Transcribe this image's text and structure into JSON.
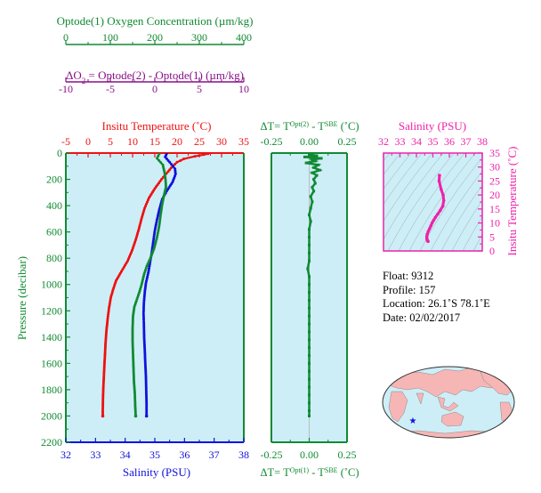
{
  "colors": {
    "temperature": "#ee1111",
    "salinity": "#1111dd",
    "oxygen": "#118a33",
    "delta_o2": "#881188",
    "salinity_inset": "#ee22aa",
    "plot_bg": "#cdeef7"
  },
  "top_axes": {
    "oxygen": {
      "label": "Optode(1) Oxygen Concentration  (µm/kg)",
      "ticks": [
        "0",
        "100",
        "200",
        "300",
        "400"
      ]
    },
    "delta_o2": {
      "label_prefix": "ΔO",
      "label_sub": "2",
      "label_suffix": " = Optode(2) - Optode(1)     (µm/kg)",
      "ticks": [
        "-10",
        "-5",
        "0",
        "5",
        "10"
      ]
    }
  },
  "main_panel": {
    "temp_label": "Insitu Temperature (˚C)",
    "temp_ticks": [
      "-5",
      "0",
      "5",
      "10",
      "15",
      "20",
      "25",
      "30",
      "35"
    ],
    "sal_label": "Salinity (PSU)",
    "sal_ticks": [
      "32",
      "33",
      "34",
      "35",
      "36",
      "37",
      "38"
    ],
    "pressure_label": "Pressure (decibar)",
    "pressure_ticks": [
      "0",
      "200",
      "400",
      "600",
      "800",
      "1000",
      "1200",
      "1400",
      "1600",
      "1800",
      "2000",
      "2200"
    ]
  },
  "dt_panel": {
    "top_label": {
      "pre": "ΔT= T",
      "sup1": "Opt(2)",
      "mid": " - T",
      "sup2": "SBE",
      "post": " (˚C)"
    },
    "bottom_label": {
      "pre": "ΔT= T",
      "sup1": "Opt(1)",
      "mid": " - T",
      "sup2": "SBE",
      "post": " (˚C)"
    },
    "ticks": [
      "-0.25",
      "0.00",
      "0.25"
    ]
  },
  "ts_panel": {
    "sal_label": "Salinity (PSU)",
    "sal_ticks": [
      "32",
      "33",
      "34",
      "35",
      "36",
      "37",
      "38"
    ],
    "temp_label": "Insitu Temperature (˚C)",
    "temp_ticks": [
      "0",
      "5",
      "10",
      "15",
      "20",
      "25",
      "30",
      "35"
    ]
  },
  "info": {
    "float": "Float:  9312",
    "profile": "Profile:  157",
    "location": "Location:  26.1˚S  78.1˚E",
    "date": "Date:  02/02/2017"
  },
  "chart_data": [
    {
      "type": "line",
      "name": "profile",
      "ylabel": "Pressure (decibar)",
      "ylim": [
        0,
        2200
      ],
      "y_inverted": true,
      "series": [
        {
          "name": "Insitu Temperature (˚C)",
          "xlim": [
            -5,
            35
          ],
          "color": "#ee1111",
          "points": [
            [
              27,
              5
            ],
            [
              26,
              12
            ],
            [
              24,
              25
            ],
            [
              21.5,
              45
            ],
            [
              20,
              70
            ],
            [
              19,
              100
            ],
            [
              18,
              140
            ],
            [
              16.5,
              200
            ],
            [
              15,
              270
            ],
            [
              13.7,
              340
            ],
            [
              12.7,
              420
            ],
            [
              12,
              500
            ],
            [
              11.4,
              580
            ],
            [
              10.7,
              660
            ],
            [
              9.9,
              740
            ],
            [
              8.9,
              820
            ],
            [
              7.5,
              900
            ],
            [
              6.3,
              970
            ],
            [
              5.6,
              1040
            ],
            [
              5.1,
              1100
            ],
            [
              4.7,
              1180
            ],
            [
              4.4,
              1260
            ],
            [
              4.1,
              1360
            ],
            [
              3.9,
              1460
            ],
            [
              3.75,
              1560
            ],
            [
              3.6,
              1660
            ],
            [
              3.45,
              1760
            ],
            [
              3.35,
              1860
            ],
            [
              3.3,
              1960
            ],
            [
              3.3,
              2000
            ]
          ]
        },
        {
          "name": "Salinity (PSU)",
          "xlim": [
            32,
            38
          ],
          "color": "#1111dd",
          "points": [
            [
              35.4,
              5
            ],
            [
              35.35,
              30
            ],
            [
              35.5,
              70
            ],
            [
              35.68,
              120
            ],
            [
              35.7,
              160
            ],
            [
              35.6,
              220
            ],
            [
              35.4,
              290
            ],
            [
              35.25,
              350
            ],
            [
              35.15,
              430
            ],
            [
              35.07,
              510
            ],
            [
              35.0,
              590
            ],
            [
              34.95,
              670
            ],
            [
              34.9,
              750
            ],
            [
              34.84,
              830
            ],
            [
              34.78,
              910
            ],
            [
              34.7,
              990
            ],
            [
              34.66,
              1060
            ],
            [
              34.63,
              1140
            ],
            [
              34.62,
              1220
            ],
            [
              34.63,
              1300
            ],
            [
              34.64,
              1400
            ],
            [
              34.66,
              1500
            ],
            [
              34.68,
              1600
            ],
            [
              34.7,
              1700
            ],
            [
              34.71,
              1800
            ],
            [
              34.72,
              1900
            ],
            [
              34.72,
              2000
            ]
          ]
        },
        {
          "name": "Optode(1) Oxygen Concentration (µm/kg)",
          "xlim": [
            0,
            400
          ],
          "color": "#118a33",
          "points": [
            [
              210,
              5
            ],
            [
              205,
              40
            ],
            [
              218,
              90
            ],
            [
              222,
              150
            ],
            [
              224,
              200
            ],
            [
              225,
              260
            ],
            [
              220,
              330
            ],
            [
              216,
              400
            ],
            [
              213,
              470
            ],
            [
              210,
              550
            ],
            [
              205,
              640
            ],
            [
              198,
              730
            ],
            [
              190,
              800
            ],
            [
              182,
              860
            ],
            [
              176,
              920
            ],
            [
              171,
              990
            ],
            [
              166,
              1050
            ],
            [
              160,
              1110
            ],
            [
              154,
              1170
            ],
            [
              151,
              1240
            ],
            [
              150,
              1330
            ],
            [
              150,
              1430
            ],
            [
              151,
              1530
            ],
            [
              152,
              1630
            ],
            [
              153,
              1730
            ],
            [
              155,
              1830
            ],
            [
              156,
              1930
            ],
            [
              157,
              2000
            ]
          ]
        }
      ]
    },
    {
      "type": "scatter",
      "name": "delta_t",
      "xlim": [
        -0.25,
        0.25
      ],
      "ylim": [
        0,
        2200
      ],
      "y_inverted": true,
      "series": [
        {
          "name": "ΔT",
          "color": "#118a33",
          "points": [
            [
              0.0,
              10
            ],
            [
              0.05,
              20
            ],
            [
              -0.03,
              30
            ],
            [
              0.08,
              40
            ],
            [
              0.02,
              50
            ],
            [
              0.04,
              60
            ],
            [
              -0.02,
              75
            ],
            [
              0.06,
              90
            ],
            [
              0.03,
              110
            ],
            [
              0.07,
              130
            ],
            [
              0.02,
              150
            ],
            [
              0.05,
              170
            ],
            [
              0.03,
              200
            ],
            [
              0.04,
              230
            ],
            [
              0.02,
              260
            ],
            [
              0.03,
              290
            ],
            [
              0.01,
              330
            ],
            [
              0.02,
              370
            ],
            [
              0.01,
              420
            ],
            [
              0.0,
              470
            ],
            [
              0.01,
              520
            ],
            [
              0.0,
              580
            ],
            [
              0.0,
              640
            ],
            [
              0.0,
              700
            ],
            [
              0.0,
              760
            ],
            [
              0.0,
              820
            ],
            [
              -0.01,
              880
            ],
            [
              0.0,
              940
            ],
            [
              0.0,
              1000
            ],
            [
              0.0,
              1060
            ],
            [
              0.0,
              1120
            ],
            [
              0.0,
              1180
            ],
            [
              0.0,
              1240
            ],
            [
              0.0,
              1300
            ],
            [
              0.0,
              1360
            ],
            [
              0.0,
              1420
            ],
            [
              0.0,
              1480
            ],
            [
              0.0,
              1540
            ],
            [
              0.0,
              1600
            ],
            [
              0.0,
              1660
            ],
            [
              0.0,
              1720
            ],
            [
              0.0,
              1780
            ],
            [
              0.0,
              1840
            ],
            [
              0.0,
              1900
            ],
            [
              0.0,
              1960
            ],
            [
              0.0,
              2000
            ]
          ]
        }
      ]
    },
    {
      "type": "scatter",
      "name": "ts_diagram",
      "xlabel": "Salinity (PSU)",
      "ylabel": "Insitu Temperature (˚C)",
      "xlim": [
        32,
        38
      ],
      "ylim": [
        0,
        35
      ],
      "series": [
        {
          "name": "T-S",
          "color": "#ee22aa",
          "points": [
            [
              35.4,
              27
            ],
            [
              35.38,
              25
            ],
            [
              35.5,
              22
            ],
            [
              35.62,
              20
            ],
            [
              35.66,
              18
            ],
            [
              35.6,
              16
            ],
            [
              35.45,
              14.5
            ],
            [
              35.3,
              13.2
            ],
            [
              35.15,
              12
            ],
            [
              35.05,
              11
            ],
            [
              34.95,
              10
            ],
            [
              34.88,
              9
            ],
            [
              34.8,
              8
            ],
            [
              34.72,
              7
            ],
            [
              34.66,
              6
            ],
            [
              34.63,
              5.2
            ],
            [
              34.63,
              4.5
            ],
            [
              34.65,
              4
            ],
            [
              34.68,
              3.6
            ],
            [
              34.71,
              3.4
            ]
          ]
        }
      ]
    }
  ]
}
